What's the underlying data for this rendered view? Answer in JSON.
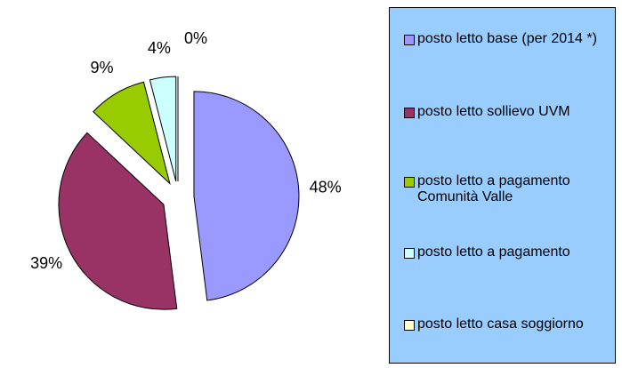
{
  "chart_data": {
    "type": "pie",
    "categories": [
      "posto letto base (per 2014 *)",
      "posto letto sollievo UVM",
      "posto letto a pagamento Comunità Valle",
      "posto letto a pagamento",
      "posto letto casa soggiorno"
    ],
    "values": [
      48,
      39,
      9,
      4,
      0
    ],
    "value_labels": [
      "48%",
      "39%",
      "9%",
      "4%",
      "0%"
    ],
    "colors": [
      "#9999ff",
      "#993366",
      "#99cc00",
      "#ccffff",
      "#ffffcc"
    ],
    "legend": "right"
  }
}
